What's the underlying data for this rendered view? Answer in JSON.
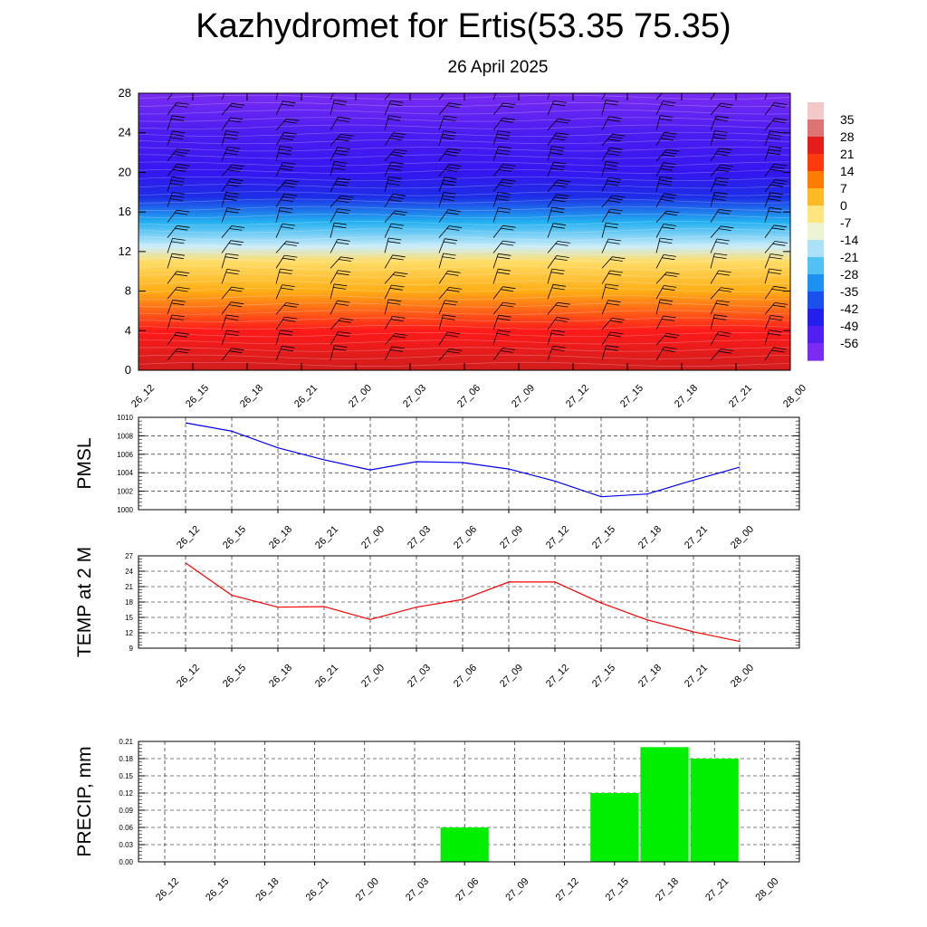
{
  "header": {
    "title": "Kazhydromet for Ertis(53.35 75.35)",
    "date": "26 April 2025"
  },
  "chart_data": [
    {
      "type": "heatmap",
      "title": "",
      "xlabel": "",
      "ylabel": "",
      "x_categories": [
        "26_12",
        "26_15",
        "26_18",
        "26_21",
        "27_00",
        "27_03",
        "27_06",
        "27_09",
        "27_12",
        "27_15",
        "27_18",
        "27_21",
        "28_00"
      ],
      "y_ticks": [
        0,
        4,
        8,
        12,
        16,
        20,
        24,
        28
      ],
      "ylim": [
        0,
        28
      ],
      "colorbar_labels": [
        35,
        28,
        21,
        14,
        7,
        0,
        -7,
        -14,
        -21,
        -28,
        -35,
        -42,
        -49,
        -56
      ],
      "color_stops": [
        {
          "value": 35,
          "color": "#f2c8c8"
        },
        {
          "value": 28,
          "color": "#c81e1e"
        },
        {
          "value": 21,
          "color": "#ff1a1a"
        },
        {
          "value": 14,
          "color": "#ff5a00"
        },
        {
          "value": 7,
          "color": "#ffa000"
        },
        {
          "value": 0,
          "color": "#ffd24a"
        },
        {
          "value": -7,
          "color": "#fff8b0"
        },
        {
          "value": -14,
          "color": "#d8f0fa"
        },
        {
          "value": -21,
          "color": "#7fd4f5"
        },
        {
          "value": -28,
          "color": "#22b0f0"
        },
        {
          "value": -35,
          "color": "#1473ef"
        },
        {
          "value": -42,
          "color": "#1c2ee6"
        },
        {
          "value": -49,
          "color": "#2a12f0"
        },
        {
          "value": -56,
          "color": "#7a2cf2"
        }
      ],
      "vertical_profile": [
        {
          "level": 0,
          "value": 27
        },
        {
          "level": 4,
          "value": 21
        },
        {
          "level": 8,
          "value": 5
        },
        {
          "level": 11,
          "value": -2
        },
        {
          "level": 12.5,
          "value": -15
        },
        {
          "level": 15,
          "value": -28
        },
        {
          "level": 17.5,
          "value": -42
        },
        {
          "level": 20,
          "value": -50
        },
        {
          "level": 24,
          "value": -52
        },
        {
          "level": 28,
          "value": -56
        }
      ],
      "wind_barbs": "present",
      "legend": "right colorbar"
    },
    {
      "type": "line",
      "ylabel": "PMSL",
      "categories": [
        "26_12",
        "26_15",
        "26_18",
        "26_21",
        "27_00",
        "27_03",
        "27_06",
        "27_09",
        "27_12",
        "27_15",
        "27_18",
        "27_21",
        "28_00"
      ],
      "values": [
        1009.4,
        1008.5,
        1006.7,
        1005.4,
        1004.3,
        1005.2,
        1005.1,
        1004.4,
        1003.1,
        1001.4,
        1001.7,
        1003.2,
        1004.6
      ],
      "ylim": [
        1000,
        1010
      ],
      "yticks": [
        "1000",
        "1002",
        "1004",
        "1006",
        "1008",
        "1010"
      ],
      "color": "#0000ff",
      "grid": true
    },
    {
      "type": "line",
      "ylabel": "TEMP at 2 M",
      "categories": [
        "26_12",
        "26_15",
        "26_18",
        "26_21",
        "27_00",
        "27_03",
        "27_06",
        "27_09",
        "27_12",
        "27_15",
        "27_18",
        "27_21",
        "28_00"
      ],
      "values": [
        25.6,
        19.3,
        17.0,
        17.1,
        14.6,
        17.0,
        18.5,
        21.9,
        21.9,
        17.8,
        14.5,
        12.2,
        10.3
      ],
      "ylim": [
        9,
        27
      ],
      "yticks": [
        "9",
        "12",
        "15",
        "18",
        "21",
        "24",
        "27"
      ],
      "color": "#ff0000",
      "grid": true
    },
    {
      "type": "bar",
      "ylabel": "PRECIP, mm",
      "categories": [
        "26_12",
        "26_15",
        "26_18",
        "26_21",
        "27_00",
        "27_03",
        "27_06",
        "27_09",
        "27_12",
        "27_15",
        "27_18",
        "27_21",
        "28_00"
      ],
      "values": [
        0,
        0,
        0,
        0,
        0,
        0,
        0.06,
        0,
        0,
        0.12,
        0.2,
        0.18,
        0
      ],
      "ylim": [
        0,
        0.21
      ],
      "yticks": [
        "0.00",
        "0.03",
        "0.06",
        "0.09",
        "0.12",
        "0.15",
        "0.18",
        "0.21"
      ],
      "color": "#00ee00",
      "grid": true
    }
  ]
}
